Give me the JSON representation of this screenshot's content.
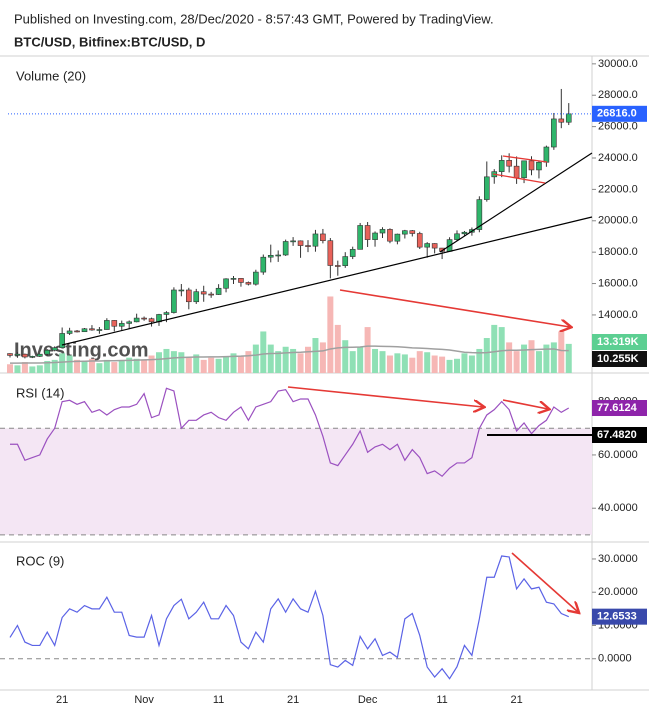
{
  "header": {
    "published": "Published on Investing.com, 28/Dec/2020 - 8:57:43 GMT, Powered by TradingView.",
    "symbol": "BTC/USD, Bitfinex:BTC/USD, D",
    "watermark": "Investing.com"
  },
  "chart_data": [
    {
      "type": "candlestick",
      "categories": [
        null,
        null,
        null,
        null,
        null,
        null,
        null,
        "21",
        null,
        null,
        null,
        null,
        null,
        null,
        null,
        null,
        null,
        null,
        "Nov",
        null,
        null,
        null,
        null,
        null,
        null,
        null,
        null,
        null,
        "11",
        null,
        null,
        null,
        null,
        null,
        null,
        null,
        null,
        null,
        "21",
        null,
        null,
        null,
        null,
        null,
        null,
        null,
        null,
        null,
        "Dec",
        null,
        null,
        null,
        null,
        null,
        null,
        null,
        null,
        null,
        "11",
        null,
        null,
        null,
        null,
        null,
        null,
        null,
        null,
        null,
        "21",
        null,
        null,
        null,
        null,
        null,
        null,
        null
      ],
      "open": [
        11540,
        11420,
        11500,
        11320,
        11360,
        11500,
        11750,
        11910,
        12820,
        12980,
        12930,
        13120,
        13040,
        13070,
        13650,
        13280,
        13460,
        13560,
        13800,
        13760,
        13560,
        14030,
        14150,
        15590,
        15590,
        14840,
        15480,
        15330,
        15300,
        15700,
        16300,
        16330,
        16070,
        15960,
        16730,
        17680,
        17800,
        17820,
        18680,
        18720,
        18420,
        18380,
        19160,
        18730,
        17150,
        17140,
        17720,
        18180,
        19700,
        18800,
        19220,
        19450,
        18700,
        19150,
        19370,
        19190,
        18320,
        18550,
        18260,
        18050,
        18800,
        19170,
        19270,
        19440,
        21350,
        22800,
        23130,
        23850,
        23480,
        22740,
        23820,
        23240,
        23730,
        24700,
        26490,
        26280
      ],
      "high": [
        11560,
        11640,
        11540,
        11400,
        11520,
        11820,
        12000,
        13200,
        13180,
        13040,
        13170,
        13350,
        13230,
        13790,
        13670,
        13640,
        13650,
        14080,
        13900,
        13830,
        14070,
        14240,
        15760,
        15970,
        15730,
        15660,
        15860,
        15470,
        15960,
        16340,
        16480,
        16330,
        16130,
        16880,
        17850,
        18480,
        18110,
        18800,
        18960,
        18750,
        18770,
        19420,
        19480,
        18900,
        17460,
        18000,
        18350,
        19860,
        19920,
        19320,
        19590,
        19520,
        19180,
        19420,
        19410,
        19300,
        18640,
        18570,
        18270,
        18950,
        19390,
        19350,
        19570,
        21560,
        23780,
        23290,
        24170,
        24300,
        24100,
        23840,
        24110,
        23800,
        24790,
        26870,
        28400,
        27500
      ],
      "low": [
        11290,
        11270,
        11230,
        11250,
        11320,
        11400,
        11680,
        11890,
        12720,
        12880,
        12910,
        12990,
        12800,
        13060,
        12950,
        12990,
        13140,
        13530,
        13630,
        13260,
        13300,
        13540,
        14090,
        15190,
        14360,
        14700,
        14840,
        15090,
        15270,
        15440,
        15970,
        15800,
        15880,
        15870,
        16560,
        17350,
        17380,
        17760,
        18400,
        17640,
        18000,
        18030,
        18560,
        16330,
        16500,
        17000,
        17560,
        18180,
        18330,
        18350,
        18900,
        18570,
        18500,
        18870,
        19000,
        18200,
        17650,
        17920,
        17560,
        18020,
        18730,
        19000,
        19050,
        19270,
        21220,
        22360,
        22780,
        23080,
        22350,
        22400,
        22900,
        22700,
        23440,
        24520,
        25900,
        26100
      ],
      "close": [
        11420,
        11500,
        11320,
        11360,
        11500,
        11750,
        11910,
        12820,
        12980,
        12930,
        13120,
        13040,
        13070,
        13650,
        13280,
        13460,
        13560,
        13800,
        13760,
        13560,
        14030,
        14150,
        15590,
        15590,
        14840,
        15480,
        15330,
        15300,
        15700,
        16300,
        16330,
        16070,
        15960,
        16730,
        17680,
        17800,
        17820,
        18680,
        18720,
        18420,
        18380,
        19160,
        18730,
        17150,
        17140,
        17720,
        18180,
        19700,
        18800,
        19220,
        19450,
        18700,
        19150,
        19370,
        19190,
        18320,
        18550,
        18260,
        18050,
        18800,
        19170,
        19270,
        19440,
        21350,
        22800,
        23130,
        23850,
        23480,
        22740,
        23820,
        23240,
        23730,
        24700,
        26490,
        26280,
        26816
      ],
      "up_color": "#2fb56b",
      "down_color": "#e8625a",
      "ylim": [
        10300,
        30500
      ],
      "yticks": [
        {
          "value": 14000,
          "label": "14000.0"
        },
        {
          "value": 16000,
          "label": "16000.0"
        },
        {
          "value": 18000,
          "label": "18000.0"
        },
        {
          "value": 20000,
          "label": "20000.0"
        },
        {
          "value": 22000,
          "label": "22000.0"
        },
        {
          "value": 24000,
          "label": "24000.0"
        },
        {
          "value": 26000,
          "label": "26000.0"
        },
        {
          "value": 28000,
          "label": "28000.0"
        },
        {
          "value": 30000,
          "label": "30000.0"
        }
      ],
      "last_price": {
        "value": 26816,
        "label": "26816.0"
      },
      "last_price_color": "#2962ff",
      "volume": {
        "name": "Volume (20)",
        "values": [
          4000,
          3500,
          5000,
          3000,
          3500,
          5500,
          6000,
          9000,
          8000,
          6000,
          5500,
          6500,
          4500,
          6000,
          5000,
          5500,
          7000,
          6500,
          6000,
          8000,
          9500,
          11000,
          10000,
          9500,
          7000,
          8500,
          6000,
          7000,
          6500,
          7500,
          9000,
          8000,
          10000,
          13000,
          19000,
          13000,
          10000,
          12000,
          11000,
          9000,
          12000,
          16000,
          14000,
          35000,
          22000,
          15000,
          10000,
          12000,
          21000,
          11000,
          10000,
          8000,
          9000,
          8500,
          7000,
          10000,
          9500,
          8000,
          7500,
          6000,
          6500,
          9000,
          8000,
          11000,
          16000,
          22000,
          21000,
          14000,
          10000,
          13000,
          15000,
          10000,
          13000,
          14000,
          19000,
          13319
        ],
        "ma": [
          4500,
          4500,
          4600,
          4600,
          4600,
          4700,
          4800,
          5000,
          5200,
          5300,
          5400,
          5500,
          5500,
          5600,
          5600,
          5700,
          5800,
          5900,
          6000,
          6100,
          6300,
          6600,
          6900,
          7100,
          7200,
          7300,
          7300,
          7400,
          7400,
          7500,
          7600,
          7700,
          7900,
          8200,
          8700,
          8900,
          9000,
          9200,
          9400,
          9500,
          9700,
          9900,
          10100,
          11000,
          11500,
          11700,
          11800,
          11900,
          12300,
          12300,
          12200,
          12100,
          12000,
          11800,
          11500,
          11400,
          11200,
          11000,
          10800,
          10500,
          10000,
          9500,
          9300,
          9200,
          9300,
          9700,
          10200,
          10400,
          10400,
          10500,
          10700,
          10800,
          10900,
          11000,
          10300,
          10255
        ],
        "ylim": [
          0,
          145000
        ],
        "up_color": "#8fe0b5",
        "down_color": "#f6b7b5",
        "ma_color": "#a0a0a0",
        "last_label": {
          "value": 13319,
          "label": "13.319K"
        },
        "last_label_color": "#5ccf92",
        "ma_label": {
          "value": 10255,
          "label": "10.255K"
        },
        "ma_label_color": "#111111"
      }
    },
    {
      "type": "line",
      "name": "RSI (14)",
      "color": "#9b51c0",
      "label_color": "#8e24aa",
      "values": [
        64,
        64,
        58,
        59,
        60,
        66,
        70,
        80,
        80.5,
        79,
        80,
        76,
        77,
        75,
        77,
        78,
        78,
        79,
        83,
        74,
        75,
        85,
        84,
        70,
        73,
        73,
        75,
        76,
        74,
        73,
        76,
        78,
        73,
        78,
        79,
        80,
        84,
        84.5,
        80,
        81,
        81,
        75,
        67,
        57,
        56,
        60,
        64,
        69,
        61,
        63,
        64,
        62,
        64,
        58,
        62,
        59,
        53,
        54,
        52,
        55,
        57,
        57,
        59,
        70,
        75,
        77,
        80,
        77,
        69,
        72,
        68,
        71,
        73,
        78,
        76,
        77.6124
      ],
      "ylim": [
        27.7,
        90
      ],
      "yticks": [
        {
          "value": 40,
          "label": "40.0000"
        },
        {
          "value": 60,
          "label": "60.0000"
        },
        {
          "value": 80,
          "label": "80.0000"
        }
      ],
      "band": [
        30,
        70
      ],
      "band_color": "#f4e6f4",
      "level": {
        "value": 67.482,
        "label": "67.4820"
      }
    },
    {
      "type": "line",
      "name": "ROC (9)",
      "color": "#5b63e6",
      "label_color": "#3949ab",
      "values": [
        6.4,
        10,
        5,
        4,
        4,
        8,
        4,
        12.4,
        15,
        14,
        16,
        15,
        15,
        18.5,
        14,
        14,
        7,
        6.5,
        6.5,
        13,
        4,
        12,
        16,
        17.9,
        12,
        14,
        17,
        12,
        12,
        16,
        13,
        5,
        3,
        8,
        5,
        15,
        18,
        14,
        18,
        15,
        14,
        20.3,
        13,
        -1.8,
        -2.5,
        -0.5,
        -2,
        6.7,
        3,
        6,
        1,
        2,
        0.4,
        12,
        13.6,
        7,
        -2.5,
        -5.5,
        -3,
        -6,
        -2.4,
        4,
        1,
        12,
        24.5,
        24.5,
        30.9,
        30.6,
        21,
        24,
        21,
        21.5,
        17,
        16.5,
        13.6,
        12.6533
      ],
      "ylim": [
        -9.4,
        34.8
      ],
      "yticks": [
        {
          "value": 0,
          "label": "0.0000"
        },
        {
          "value": 10,
          "label": "10.0000"
        },
        {
          "value": 20,
          "label": "20.0000"
        },
        {
          "value": 30,
          "label": "30.0000"
        }
      ],
      "baseline": 0
    }
  ]
}
